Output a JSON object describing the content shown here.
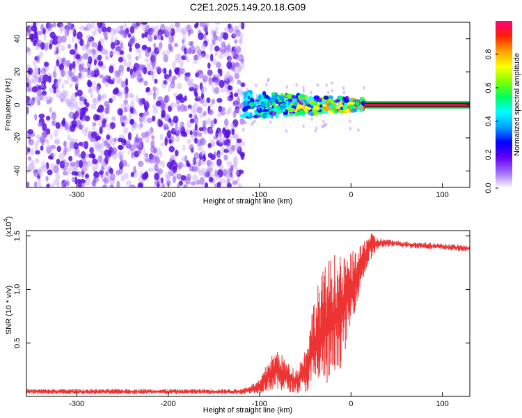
{
  "chart_data": [
    {
      "type": "heatmap",
      "title": "C2E1.2025.149.20.18.G09",
      "xlabel": "Height of straight line (km)",
      "ylabel": "Frequency (Hz)",
      "xlim": [
        -355,
        130
      ],
      "ylim": [
        -50,
        50
      ],
      "xticks": [
        -300,
        -200,
        -100,
        0,
        100
      ],
      "yticks": [
        -40,
        -20,
        0,
        20,
        40
      ],
      "colorbar": {
        "label": "Normalized spectral amplitude",
        "range": [
          0,
          1
        ],
        "ticks": [
          "0.0",
          "0.2",
          "0.4",
          "0.6",
          "0.8"
        ],
        "colors": [
          "#ffffff",
          "#a070ff",
          "#6600ff",
          "#0000ff",
          "#00a0ff",
          "#00ffff",
          "#00ff60",
          "#80ff00",
          "#ffff00",
          "#ffa000",
          "#ff2000",
          "#ff0080"
        ]
      },
      "regions": [
        {
          "name": "noise",
          "x": [
            -355,
            -118
          ],
          "f": [
            -50,
            50
          ],
          "amplitude": 0.08
        },
        {
          "name": "transition",
          "x": [
            -118,
            15
          ],
          "f": [
            -8,
            8
          ],
          "amplitude": 0.5
        },
        {
          "name": "carrier",
          "x": [
            15,
            130
          ],
          "f": [
            -1.5,
            1.5
          ],
          "amplitude": 1.0
        }
      ]
    },
    {
      "type": "line",
      "xlabel": "Height of straight line (km)",
      "ylabel": "SNR (10 * v/v)",
      "scale_label": "(x10",
      "scale_exp": "4",
      "scale_close": ")",
      "xlim": [
        -355,
        130
      ],
      "ylim": [
        0,
        15500
      ],
      "xticks": [
        -300,
        -200,
        -100,
        0,
        100
      ],
      "yticks": [
        {
          "value": 5000,
          "label": "0.5"
        },
        {
          "value": 10000,
          "label": "1.0"
        },
        {
          "value": 15000,
          "label": "1.5"
        }
      ],
      "series": [
        {
          "color": "#ee3333",
          "envelope": [
            {
              "x": -355,
              "lo": 200,
              "hi": 700
            },
            {
              "x": -120,
              "lo": 200,
              "hi": 700
            },
            {
              "x": -100,
              "lo": 300,
              "hi": 1500
            },
            {
              "x": -90,
              "lo": 500,
              "hi": 3500
            },
            {
              "x": -80,
              "lo": 500,
              "hi": 4500
            },
            {
              "x": -70,
              "lo": 400,
              "hi": 3200
            },
            {
              "x": -60,
              "lo": 300,
              "hi": 2500
            },
            {
              "x": -50,
              "lo": 300,
              "hi": 4500
            },
            {
              "x": -40,
              "lo": 500,
              "hi": 9500
            },
            {
              "x": -30,
              "lo": 800,
              "hi": 12000
            },
            {
              "x": -20,
              "lo": 1000,
              "hi": 13500
            },
            {
              "x": -10,
              "lo": 3000,
              "hi": 13000
            },
            {
              "x": 0,
              "lo": 6500,
              "hi": 13500
            },
            {
              "x": 10,
              "lo": 10000,
              "hi": 14000
            },
            {
              "x": 20,
              "lo": 12500,
              "hi": 15500
            },
            {
              "x": 30,
              "lo": 13800,
              "hi": 14800
            },
            {
              "x": 40,
              "lo": 14000,
              "hi": 14700
            },
            {
              "x": 60,
              "lo": 13900,
              "hi": 14500
            },
            {
              "x": 80,
              "lo": 13800,
              "hi": 14400
            },
            {
              "x": 100,
              "lo": 13700,
              "hi": 14300
            },
            {
              "x": 130,
              "lo": 13500,
              "hi": 14100
            }
          ]
        }
      ]
    }
  ]
}
